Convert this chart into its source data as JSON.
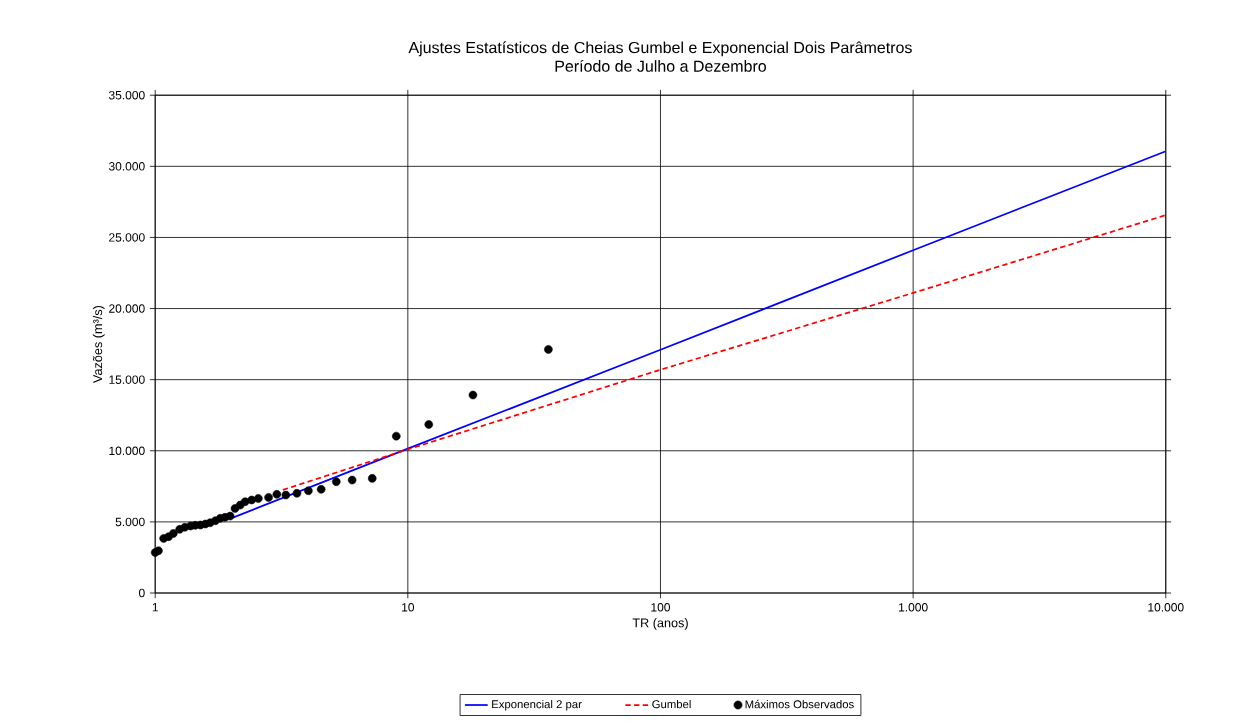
{
  "chart_data": {
    "type": "line",
    "title": "Ajustes Estatísticos de Cheias Gumbel e Exponencial Dois Parâmetros",
    "subtitle": "Período de Julho a Dezembro",
    "xlabel": "TR (anos)",
    "ylabel": "Vazões (m³/s)",
    "log": "x",
    "grid": true,
    "legend": "bottom",
    "xlim": [
      1,
      10000
    ],
    "xticks": [
      1,
      10,
      100,
      {
        "value": 1000,
        "label": "1.000"
      },
      {
        "value": 10000,
        "label": "10.000"
      }
    ],
    "ylim": [
      0,
      35000
    ],
    "yticks": [
      0,
      {
        "value": 5000,
        "label": "5.000"
      },
      {
        "value": 10000,
        "label": "10.000"
      },
      {
        "value": 15000,
        "label": "15.000"
      },
      {
        "value": 20000,
        "label": "20.000"
      },
      {
        "value": 25000,
        "label": "25.000"
      },
      {
        "value": 30000,
        "label": "30.000"
      },
      {
        "value": 35000,
        "label": "35.000"
      }
    ],
    "series": [
      {
        "name": "Exponencial 2 par",
        "type": "line",
        "marker": "none",
        "line_style": "solid",
        "color": "#0000ff",
        "x": [
          2.03,
          10,
          100,
          1000,
          10000
        ],
        "values": [
          5300,
          10150,
          17100,
          24100,
          31060
        ]
      },
      {
        "name": "Gumbel",
        "type": "line",
        "marker": "none",
        "line_style": "dashed",
        "color": "#ff0000",
        "x": [
          3.2,
          10,
          100,
          1000,
          10000
        ],
        "values": [
          7250,
          10100,
          15700,
          21100,
          26570
        ]
      },
      {
        "name": "Máximos Observados",
        "type": "scatter",
        "marker": "circle",
        "color": "#000000",
        "x": [
          1.0,
          1.03,
          1.08,
          1.13,
          1.18,
          1.25,
          1.31,
          1.38,
          1.44,
          1.51,
          1.58,
          1.65,
          1.73,
          1.81,
          1.89,
          1.98,
          2.07,
          2.17,
          2.27,
          2.41,
          2.56,
          2.81,
          3.03,
          3.29,
          3.64,
          4.04,
          4.54,
          5.21,
          6.02,
          7.23,
          9.0,
          12.1,
          18.1,
          36
        ],
        "values": [
          2850,
          2970,
          3840,
          3960,
          4190,
          4480,
          4620,
          4710,
          4760,
          4780,
          4850,
          4940,
          5080,
          5250,
          5320,
          5410,
          5950,
          6180,
          6420,
          6540,
          6650,
          6720,
          6940,
          6890,
          7010,
          7190,
          7290,
          7830,
          7940,
          8060,
          11030,
          11850,
          13920,
          17130
        ]
      }
    ]
  }
}
